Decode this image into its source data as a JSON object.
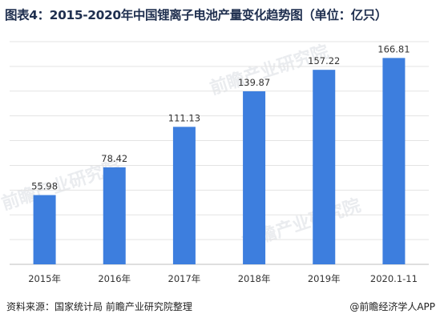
{
  "title": "图表4：2015-2020年中国锂离子电池产量变化趋势图（单位：亿只）",
  "chart_data": {
    "type": "bar",
    "categories": [
      "2015年",
      "2016年",
      "2017年",
      "2018年",
      "2019年",
      "2020.1-11"
    ],
    "values": [
      55.98,
      78.42,
      111.13,
      139.87,
      157.22,
      166.81
    ],
    "value_labels": [
      "55.98",
      "78.42",
      "111.13",
      "139.87",
      "157.22",
      "166.81"
    ],
    "unit": "亿只",
    "ylim": [
      0,
      180
    ],
    "grid": true,
    "bar_color": "#3d7ede"
  },
  "footer": {
    "source": "资料来源：国家统计局 前瞻产业研究院整理",
    "credit": "@前瞻经济学人APP"
  },
  "watermark": {
    "text": "前瞻产业研究院"
  }
}
